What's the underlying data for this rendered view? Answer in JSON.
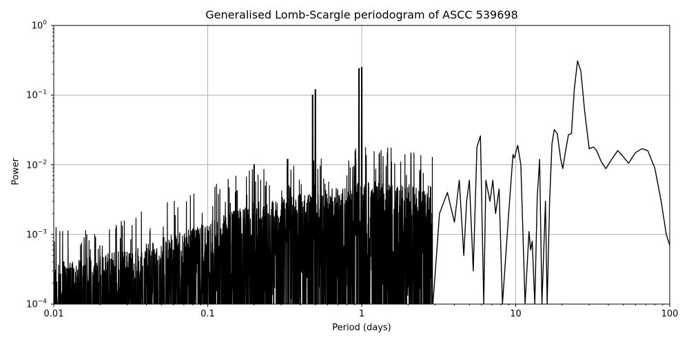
{
  "chart_data": {
    "type": "line",
    "title": "Generalised Lomb-Scargle periodogram of ASCC 539698",
    "xlabel": "Period (days)",
    "ylabel": "Power",
    "xscale": "log",
    "yscale": "log",
    "xlim": [
      0.01,
      100
    ],
    "ylim": [
      0.0001,
      1
    ],
    "grid": true,
    "legend": null,
    "x_ticks": [
      "0.01",
      "0.1",
      "1",
      "10",
      "100"
    ],
    "y_ticks": [
      {
        "base": "10",
        "exp": "0"
      },
      {
        "base": "10",
        "exp": "−1"
      },
      {
        "base": "10",
        "exp": "−2"
      },
      {
        "base": "10",
        "exp": "−3"
      },
      {
        "base": "10",
        "exp": "−4"
      }
    ],
    "line_color": "#000000",
    "grid_color": "#b0b0b0",
    "noise_envelope": [
      {
        "period": 0.01,
        "power": 0.0004
      },
      {
        "period": 0.03,
        "power": 0.0006
      },
      {
        "period": 0.1,
        "power": 0.0015
      },
      {
        "period": 0.2,
        "power": 0.003
      },
      {
        "period": 0.5,
        "power": 0.004
      },
      {
        "period": 1.0,
        "power": 0.006
      },
      {
        "period": 3.0,
        "power": 0.005
      }
    ],
    "notable_peaks": [
      {
        "period": 0.48,
        "power": 0.1
      },
      {
        "period": 0.5,
        "power": 0.12
      },
      {
        "period": 0.96,
        "power": 0.24
      },
      {
        "period": 1.0,
        "power": 0.25
      },
      {
        "period": 0.2,
        "power": 0.01
      },
      {
        "period": 0.33,
        "power": 0.012
      },
      {
        "period": 5.9,
        "power": 0.026
      },
      {
        "period": 10.3,
        "power": 0.019
      },
      {
        "period": 14.3,
        "power": 0.012
      },
      {
        "period": 17.8,
        "power": 0.032
      },
      {
        "period": 25.2,
        "power": 0.31
      },
      {
        "period": 46.0,
        "power": 0.016
      },
      {
        "period": 66.0,
        "power": 0.017
      }
    ],
    "smooth_tail": [
      [
        16.0,
        0.0001
      ],
      [
        16.6,
        0.003
      ],
      [
        17.2,
        0.02
      ],
      [
        17.8,
        0.032
      ],
      [
        18.6,
        0.028
      ],
      [
        19.6,
        0.012
      ],
      [
        20.2,
        0.0088
      ],
      [
        21.0,
        0.015
      ],
      [
        22.0,
        0.027
      ],
      [
        23.0,
        0.028
      ],
      [
        24.0,
        0.12
      ],
      [
        25.2,
        0.31
      ],
      [
        26.5,
        0.22
      ],
      [
        28.0,
        0.06
      ],
      [
        30.0,
        0.017
      ],
      [
        32.0,
        0.018
      ],
      [
        33.5,
        0.016
      ],
      [
        36.0,
        0.011
      ],
      [
        38.5,
        0.0088
      ],
      [
        42.0,
        0.012
      ],
      [
        46.0,
        0.016
      ],
      [
        50.0,
        0.013
      ],
      [
        54.0,
        0.0105
      ],
      [
        60.0,
        0.015
      ],
      [
        66.0,
        0.017
      ],
      [
        72.0,
        0.016
      ],
      [
        80.0,
        0.009
      ],
      [
        88.0,
        0.003
      ],
      [
        95.0,
        0.001
      ],
      [
        100.0,
        0.0007
      ]
    ],
    "mid_segment": [
      [
        2.9,
        0.0001
      ],
      [
        3.2,
        0.002
      ],
      [
        3.6,
        0.004
      ],
      [
        4.0,
        0.0015
      ],
      [
        4.3,
        0.006
      ],
      [
        4.6,
        0.0005
      ],
      [
        4.8,
        0.003
      ],
      [
        5.0,
        0.006
      ],
      [
        5.3,
        0.0003
      ],
      [
        5.6,
        0.018
      ],
      [
        5.9,
        0.026
      ],
      [
        6.2,
        0.0001
      ],
      [
        6.4,
        0.006
      ],
      [
        6.8,
        0.003
      ],
      [
        7.1,
        0.006
      ],
      [
        7.4,
        0.002
      ],
      [
        7.8,
        0.0045
      ],
      [
        8.2,
        0.0001
      ],
      [
        9.0,
        0.002
      ],
      [
        9.6,
        0.014
      ],
      [
        9.8,
        0.0125
      ],
      [
        10.3,
        0.019
      ],
      [
        10.8,
        0.01
      ],
      [
        11.5,
        0.0001
      ],
      [
        12.2,
        0.0011
      ],
      [
        12.5,
        0.0006
      ],
      [
        12.8,
        0.0008
      ],
      [
        13.3,
        0.0001
      ],
      [
        13.8,
        0.0035
      ],
      [
        14.3,
        0.012
      ],
      [
        14.8,
        0.0001
      ],
      [
        15.6,
        0.003
      ],
      [
        16.0,
        0.0001
      ]
    ]
  }
}
